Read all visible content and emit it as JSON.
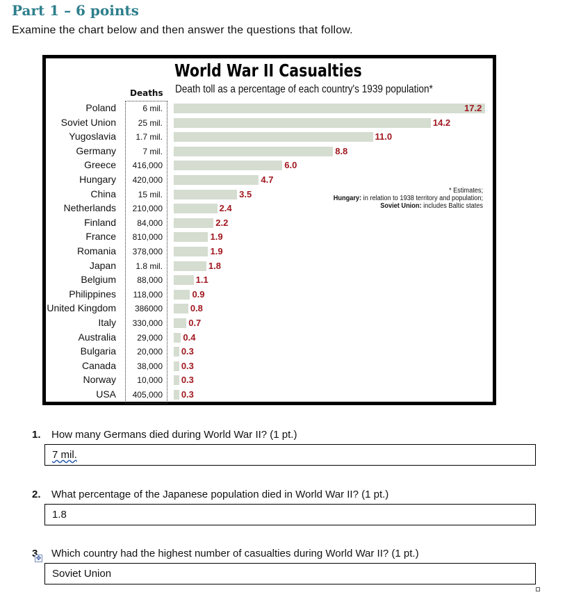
{
  "header": {
    "part_title": "Part 1 – 6 points",
    "instructions": "Examine the chart below and then answer the questions that follow."
  },
  "chart_data": {
    "type": "bar",
    "title": "World War II Casualties",
    "subtitle": "Death toll as a percentage of each country's 1939 population*",
    "deaths_header": "Deaths",
    "categories": [
      "Poland",
      "Soviet Union",
      "Yugoslavia",
      "Germany",
      "Greece",
      "Hungary",
      "China",
      "Netherlands",
      "Finland",
      "France",
      "Romania",
      "Japan",
      "Belgium",
      "Philippines",
      "United Kingdom",
      "Italy",
      "Australia",
      "Bulgaria",
      "Canada",
      "Norway",
      "USA"
    ],
    "deaths": [
      "6 mil.",
      "25 mil.",
      "1.7 mil.",
      "7 mil.",
      "416,000",
      "420,000",
      "15 mil.",
      "210,000",
      "84,000",
      "810,000",
      "378,000",
      "1.8 mil.",
      "88,000",
      "118,000",
      "386000",
      "330,000",
      "29,000",
      "20,000",
      "38,000",
      "10,000",
      "405,000"
    ],
    "values": [
      17.2,
      14.2,
      11.0,
      8.8,
      6.0,
      4.7,
      3.5,
      2.4,
      2.2,
      1.9,
      1.9,
      1.8,
      1.1,
      0.9,
      0.8,
      0.7,
      0.4,
      0.3,
      0.3,
      0.3,
      0.3
    ],
    "value_labels": [
      "17.2",
      "14.2",
      "11.0",
      "8.8",
      "6.0",
      "4.7",
      "3.5",
      "2.4",
      "2.2",
      "1.9",
      "1.9",
      "1.8",
      "1.1",
      "0.9",
      "0.8",
      "0.7",
      "0.4",
      "0.3",
      "0.3",
      "0.3",
      "0.3"
    ],
    "xlim": [
      0,
      17.2
    ],
    "notes": {
      "estimates": "* Estimates;",
      "hungary_label": "Hungary:",
      "hungary_text": " in relation to 1938 territory and population;",
      "soviet_label": "Soviet Union:",
      "soviet_text": " includes Baltic states"
    }
  },
  "questions": [
    {
      "number": "1.",
      "text": "How many Germans died during World War II? (1 pt.)",
      "answer": "7 mil."
    },
    {
      "number": "2.",
      "text": "What percentage of the Japanese population died in World War II? (1 pt.)",
      "answer": "1.8"
    },
    {
      "number": "3.",
      "text": "Which country had the highest number of casualties during World War II? (1 pt.)",
      "answer": "Soviet Union"
    }
  ]
}
